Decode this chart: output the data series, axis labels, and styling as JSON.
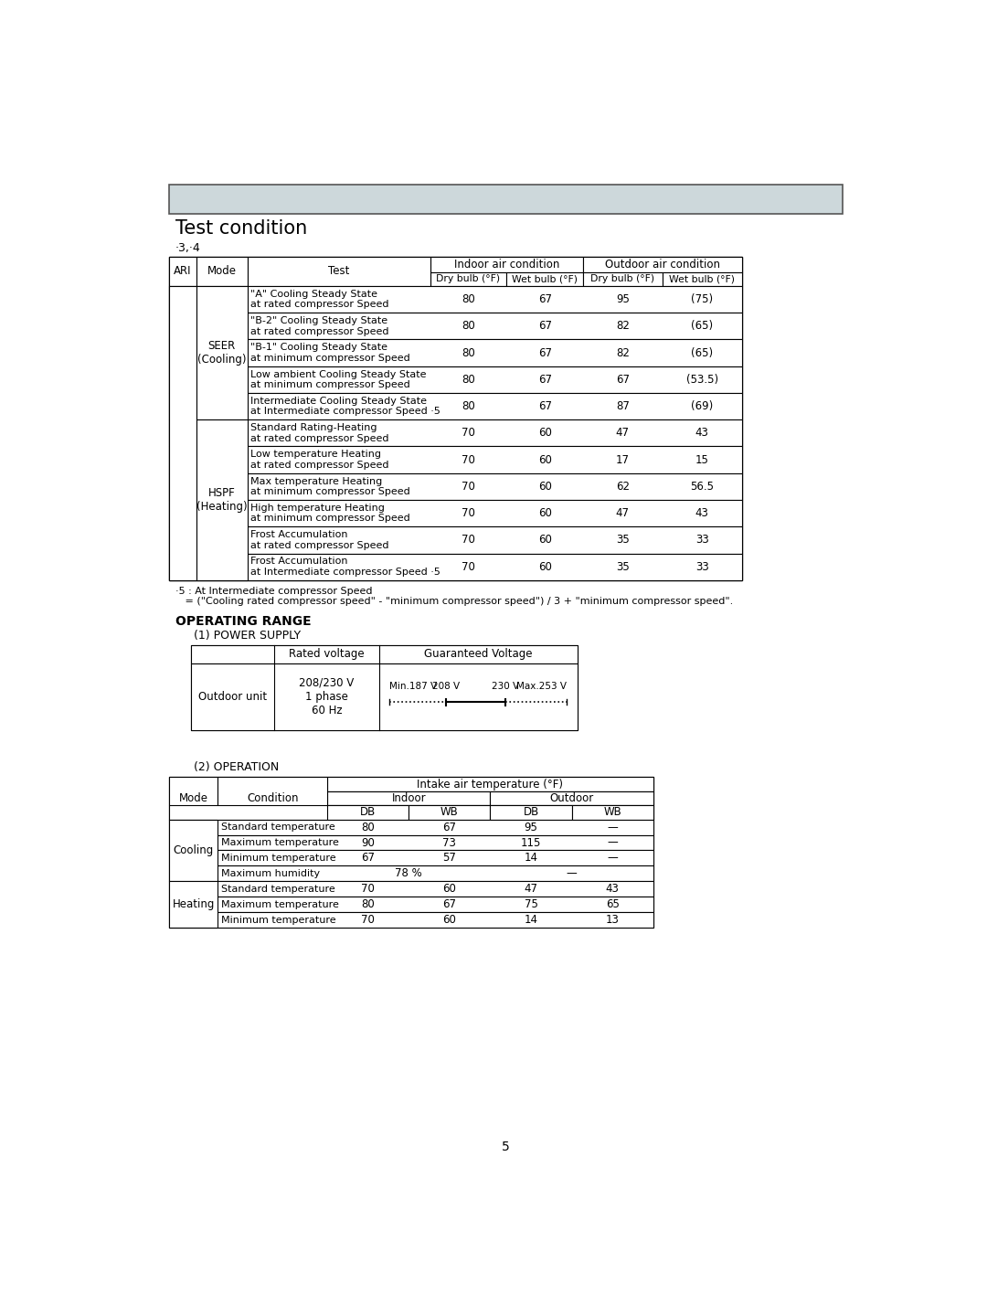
{
  "header_box_color": "#cdd8db",
  "title": "Test condition",
  "note_line": "‧3,‧4",
  "footnote_line1": "‧5 : At Intermediate compressor Speed",
  "footnote_line2": "   = (\"Cooling rated compressor speed\" - \"minimum compressor speed\") / 3 + \"minimum compressor speed\".",
  "section2_title": "OPERATING RANGE",
  "section2_sub": "(1) POWER SUPPLY",
  "section3_sub": "(2) OPERATION",
  "page_number": "5",
  "t1_rows": [
    [
      "\"A\" Cooling Steady State\nat rated compressor Speed",
      "80",
      "67",
      "95",
      "(75)"
    ],
    [
      "\"B-2\" Cooling Steady State\nat rated compressor Speed",
      "80",
      "67",
      "82",
      "(65)"
    ],
    [
      "\"B-1\" Cooling Steady State\nat minimum compressor Speed",
      "80",
      "67",
      "82",
      "(65)"
    ],
    [
      "Low ambient Cooling Steady State\nat minimum compressor Speed",
      "80",
      "67",
      "67",
      "(53.5)"
    ],
    [
      "Intermediate Cooling Steady State\nat Intermediate compressor Speed ‧5",
      "80",
      "67",
      "87",
      "(69)"
    ],
    [
      "Standard Rating-Heating\nat rated compressor Speed",
      "70",
      "60",
      "47",
      "43"
    ],
    [
      "Low temperature Heating\nat rated compressor Speed",
      "70",
      "60",
      "17",
      "15"
    ],
    [
      "Max temperature Heating\nat minimum compressor Speed",
      "70",
      "60",
      "62",
      "56.5"
    ],
    [
      "High temperature Heating\nat minimum compressor Speed",
      "70",
      "60",
      "47",
      "43"
    ],
    [
      "Frost Accumulation\nat rated compressor Speed",
      "70",
      "60",
      "35",
      "33"
    ],
    [
      "Frost Accumulation\nat Intermediate compressor Speed ‧5",
      "70",
      "60",
      "35",
      "33"
    ]
  ],
  "op_rows": [
    [
      "Standard temperature",
      "80",
      "67",
      "95",
      "—"
    ],
    [
      "Maximum temperature",
      "90",
      "73",
      "115",
      "—"
    ],
    [
      "Minimum temperature",
      "67",
      "57",
      "14",
      "—"
    ],
    [
      "Maximum humidity",
      "78 %",
      "",
      "—",
      ""
    ],
    [
      "Standard temperature",
      "70",
      "60",
      "47",
      "43"
    ],
    [
      "Maximum temperature",
      "80",
      "67",
      "75",
      "65"
    ],
    [
      "Minimum temperature",
      "70",
      "60",
      "14",
      "13"
    ]
  ]
}
